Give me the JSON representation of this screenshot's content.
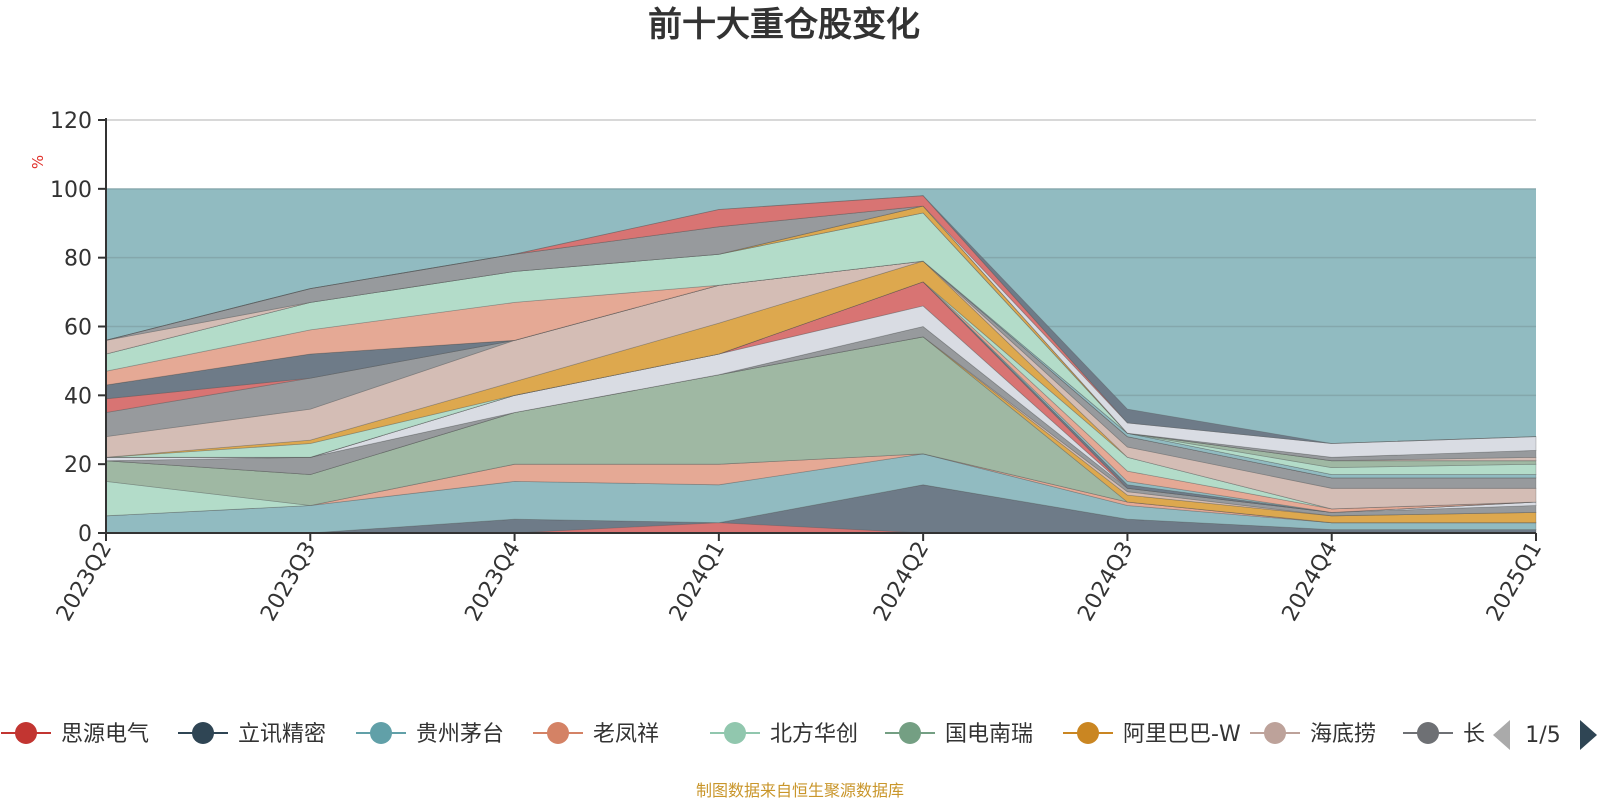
{
  "title": "前十大重仓股变化",
  "source_note": "制图数据来自恒生聚源数据库",
  "y_unit": "%",
  "pager": {
    "text": "1/5"
  },
  "legend": [
    {
      "name": "思源电气",
      "color": "#c23531"
    },
    {
      "name": "立讯精密",
      "color": "#2f4554"
    },
    {
      "name": "贵州茅台",
      "color": "#61a0a8"
    },
    {
      "name": "老凤祥",
      "color": "#d48265"
    },
    {
      "name": "北方华创",
      "color": "#91c7ae"
    },
    {
      "name": "国电南瑞",
      "color": "#749f83"
    },
    {
      "name": "阿里巴巴-W",
      "color": "#ca8622"
    },
    {
      "name": "海底捞",
      "color": "#bda29a"
    },
    {
      "name": "长",
      "color": "#6e7074"
    }
  ],
  "chart_data": {
    "type": "area",
    "title": "前十大重仓股变化",
    "ylabel": "%",
    "ylim": [
      0,
      120
    ],
    "yticks": [
      0,
      20,
      40,
      60,
      80,
      100,
      120
    ],
    "grid": true,
    "legend_position": "bottom",
    "categories": [
      "2023Q2",
      "2023Q3",
      "2023Q4",
      "2024Q1",
      "2024Q2",
      "2024Q3",
      "2024Q4",
      "2025Q1"
    ],
    "background_band": {
      "from": 0,
      "to": 100,
      "color": "#91bbc1"
    },
    "bands": [
      {
        "color": "#6e7b88",
        "top": [
          0,
          0,
          4,
          3,
          14,
          4,
          1,
          1
        ],
        "bottom": [
          0,
          0,
          0,
          0,
          0,
          0,
          0,
          0
        ]
      },
      {
        "color": "#d87473",
        "top": [
          0,
          0,
          0,
          3,
          0,
          0,
          0,
          0
        ],
        "bottom": [
          0,
          0,
          0,
          0,
          0,
          0,
          0,
          0
        ]
      },
      {
        "color": "#91bbc1",
        "top": [
          5,
          8,
          15,
          14,
          23,
          8,
          3,
          3
        ],
        "bottom": [
          0,
          0,
          4,
          3,
          14,
          4,
          1,
          1
        ]
      },
      {
        "color": "#e5a995",
        "top": [
          5,
          8,
          20,
          20,
          23,
          9,
          3,
          3
        ],
        "bottom": [
          5,
          8,
          15,
          14,
          23,
          8,
          3,
          3
        ]
      },
      {
        "color": "#b3dcc9",
        "top": [
          15,
          8,
          20,
          20,
          23,
          9,
          3,
          3
        ],
        "bottom": [
          5,
          8,
          20,
          20,
          23,
          9,
          3,
          3
        ]
      },
      {
        "color": "#9fb8a3",
        "top": [
          21,
          17,
          35,
          46,
          57,
          9,
          3,
          3
        ],
        "bottom": [
          15,
          8,
          20,
          20,
          23,
          9,
          3,
          3
        ]
      },
      {
        "color": "#dda84e",
        "top": [
          21,
          17,
          35,
          46,
          57,
          11,
          5,
          6
        ],
        "bottom": [
          21,
          17,
          35,
          46,
          57,
          9,
          3,
          3
        ]
      },
      {
        "color": "#d4bdb5",
        "top": [
          21,
          17,
          35,
          46,
          57,
          12,
          5,
          6
        ],
        "bottom": [
          21,
          17,
          35,
          46,
          57,
          11,
          5,
          6
        ]
      },
      {
        "color": "#979a9d",
        "top": [
          21,
          22,
          35,
          46,
          60,
          13,
          6,
          8
        ],
        "bottom": [
          21,
          17,
          35,
          46,
          57,
          12,
          5,
          6
        ]
      },
      {
        "color": "#d9dce3",
        "top": [
          22,
          22,
          40,
          52,
          66,
          13,
          6,
          9
        ],
        "bottom": [
          21,
          22,
          35,
          46,
          60,
          13,
          6,
          8
        ]
      },
      {
        "color": "#d87473",
        "top": [
          22,
          22,
          40,
          52,
          73,
          13,
          6,
          9
        ],
        "bottom": [
          22,
          22,
          40,
          52,
          66,
          13,
          6,
          9
        ]
      },
      {
        "color": "#6e7b88",
        "top": [
          22,
          22,
          40,
          52,
          73,
          14,
          6,
          9
        ],
        "bottom": [
          22,
          22,
          40,
          52,
          73,
          13,
          6,
          9
        ]
      },
      {
        "color": "#91bbc1",
        "top": [
          22,
          22,
          40,
          52,
          73,
          15,
          6,
          9
        ],
        "bottom": [
          22,
          22,
          40,
          52,
          73,
          14,
          6,
          9
        ]
      },
      {
        "color": "#e5a995",
        "top": [
          22,
          22,
          40,
          52,
          73,
          18,
          7,
          9
        ],
        "bottom": [
          22,
          22,
          40,
          52,
          73,
          15,
          6,
          9
        ]
      },
      {
        "color": "#b3dcc9",
        "top": [
          22,
          26,
          40,
          52,
          73,
          22,
          7,
          9
        ],
        "bottom": [
          22,
          22,
          40,
          52,
          73,
          18,
          7,
          9
        ]
      },
      {
        "color": "#dda84e",
        "top": [
          22,
          27,
          44,
          61,
          79,
          22,
          7,
          9
        ],
        "bottom": [
          22,
          26,
          40,
          52,
          73,
          22,
          7,
          9
        ]
      },
      {
        "color": "#d4bdb5",
        "top": [
          28,
          36,
          56,
          72,
          79,
          25,
          13,
          13
        ],
        "bottom": [
          22,
          27,
          44,
          61,
          79,
          22,
          7,
          9
        ]
      },
      {
        "color": "#979a9d",
        "top": [
          35,
          45,
          56,
          72,
          79,
          28,
          16,
          16
        ],
        "bottom": [
          28,
          36,
          56,
          72,
          79,
          25,
          13,
          13
        ]
      },
      {
        "color": "#d87473",
        "top": [
          39,
          45,
          56,
          72,
          79,
          28,
          16,
          16
        ],
        "bottom": [
          35,
          45,
          56,
          72,
          79,
          28,
          16,
          16
        ]
      },
      {
        "color": "#6e7b88",
        "top": [
          43,
          52,
          56,
          72,
          79,
          28,
          16,
          16
        ],
        "bottom": [
          39,
          45,
          56,
          72,
          79,
          28,
          16,
          16
        ]
      },
      {
        "color": "#91bbc1",
        "top": [
          43,
          52,
          56,
          72,
          79,
          29,
          17,
          17
        ],
        "bottom": [
          43,
          52,
          56,
          72,
          79,
          28,
          16,
          16
        ]
      },
      {
        "color": "#e5a995",
        "top": [
          47,
          59,
          67,
          72,
          79,
          29,
          17,
          17
        ],
        "bottom": [
          43,
          52,
          56,
          72,
          79,
          29,
          17,
          17
        ]
      },
      {
        "color": "#b3dcc9",
        "top": [
          52,
          67,
          76,
          81,
          93,
          29,
          19,
          20
        ],
        "bottom": [
          47,
          59,
          67,
          72,
          79,
          29,
          17,
          17
        ]
      },
      {
        "color": "#9fb8a3",
        "top": [
          52,
          67,
          76,
          81,
          93,
          29,
          21,
          21
        ],
        "bottom": [
          52,
          67,
          76,
          81,
          93,
          29,
          19,
          20
        ]
      },
      {
        "color": "#dda84e",
        "top": [
          52,
          67,
          76,
          81,
          95,
          29,
          21,
          21
        ],
        "bottom": [
          52,
          67,
          76,
          81,
          93,
          29,
          21,
          21
        ]
      },
      {
        "color": "#d4bdb5",
        "top": [
          56,
          67,
          76,
          81,
          95,
          29,
          21,
          22
        ],
        "bottom": [
          52,
          67,
          76,
          81,
          95,
          29,
          21,
          21
        ]
      },
      {
        "color": "#979a9d",
        "top": [
          56,
          71,
          81,
          89,
          95,
          29,
          22,
          24
        ],
        "bottom": [
          56,
          67,
          76,
          81,
          95,
          29,
          21,
          22
        ]
      },
      {
        "color": "#d9dce3",
        "top": [
          56,
          71,
          81,
          89,
          95,
          32,
          26,
          28
        ],
        "bottom": [
          56,
          71,
          81,
          89,
          95,
          29,
          22,
          24
        ]
      },
      {
        "color": "#d87473",
        "top": [
          56,
          71,
          81,
          94,
          98,
          32,
          26,
          28
        ],
        "bottom": [
          56,
          71,
          81,
          89,
          95,
          32,
          26,
          28
        ]
      },
      {
        "color": "#6e7b88",
        "top": [
          56,
          71,
          81,
          94,
          98,
          36,
          26,
          28
        ],
        "bottom": [
          56,
          71,
          81,
          94,
          98,
          32,
          26,
          28
        ]
      }
    ]
  }
}
